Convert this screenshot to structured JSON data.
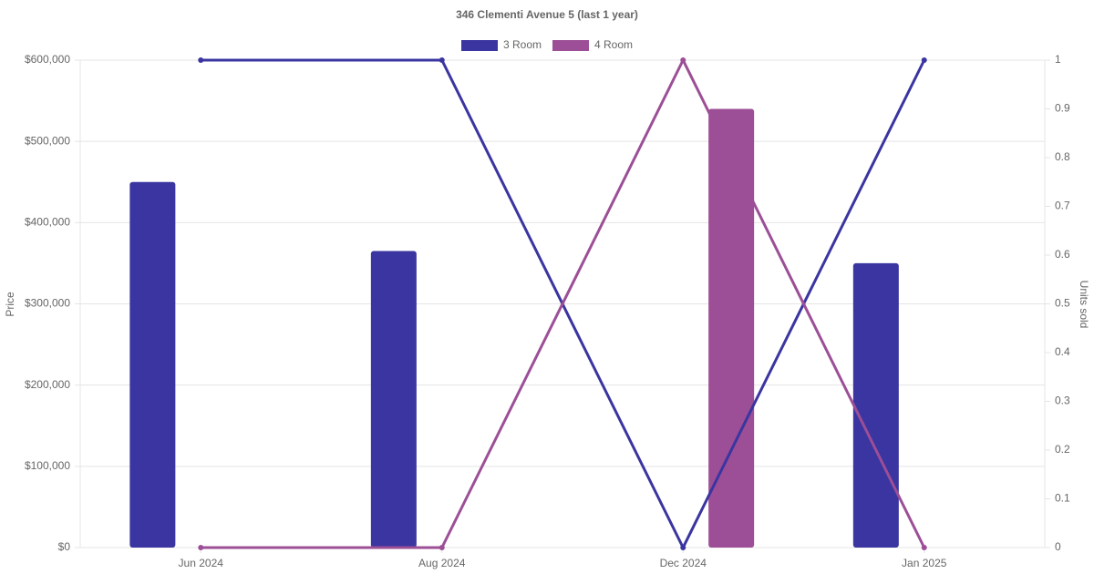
{
  "chart_data": {
    "type": "bar-line",
    "title": "346 Clementi Avenue 5 (last 1 year)",
    "categories": [
      "Jun 2024",
      "Aug 2024",
      "Dec 2024",
      "Jan 2025"
    ],
    "series": [
      {
        "name": "3 Room",
        "color": "#3a35a0",
        "values": [
          450000,
          365000,
          null,
          350000
        ],
        "units": [
          1,
          1,
          0,
          1
        ]
      },
      {
        "name": "4 Room",
        "color": "#9c4f96",
        "values": [
          null,
          null,
          540000,
          null
        ],
        "units": [
          0,
          0,
          1,
          0
        ]
      }
    ],
    "y_label": "Price",
    "y2_label": "Units sold",
    "ylim": [
      0,
      600000
    ],
    "yticks": [
      {
        "value": 0,
        "label": "$0"
      },
      {
        "value": 100000,
        "label": "$100,000"
      },
      {
        "value": 200000,
        "label": "$200,000"
      },
      {
        "value": 300000,
        "label": "$300,000"
      },
      {
        "value": 400000,
        "label": "$400,000"
      },
      {
        "value": 500000,
        "label": "$500,000"
      },
      {
        "value": 600000,
        "label": "$600,000"
      }
    ],
    "y2lim": [
      0,
      1
    ],
    "y2ticks": [
      0,
      0.1,
      0.2,
      0.3,
      0.4,
      0.5,
      0.6,
      0.7,
      0.8,
      0.9,
      1
    ],
    "grid": true,
    "legend": "top"
  }
}
